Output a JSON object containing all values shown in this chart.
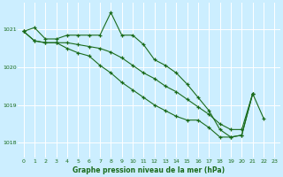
{
  "title": "Graphe pression niveau de la mer (hPa)",
  "bg_color": "#cceeff",
  "grid_color": "#ffffff",
  "line_color": "#1a6b1a",
  "marker": "+",
  "xlim": [
    -0.5,
    23.5
  ],
  "ylim": [
    1017.6,
    1021.7
  ],
  "yticks": [
    1018,
    1019,
    1020,
    1021
  ],
  "xticks": [
    0,
    1,
    2,
    3,
    4,
    5,
    6,
    7,
    8,
    9,
    10,
    11,
    12,
    13,
    14,
    15,
    16,
    17,
    18,
    19,
    20,
    21,
    22,
    23
  ],
  "line1_x": [
    0,
    1,
    2,
    3,
    4,
    5,
    6,
    7,
    8,
    9,
    10,
    11,
    12,
    13,
    14,
    15,
    16,
    17,
    18,
    19,
    20,
    21,
    22
  ],
  "line1_y": [
    1020.95,
    1021.05,
    1020.75,
    1020.75,
    1020.85,
    1020.85,
    1020.85,
    1020.85,
    1021.45,
    1020.85,
    1020.85,
    1020.6,
    1020.2,
    1020.05,
    1019.85,
    1019.55,
    1019.2,
    1018.85,
    1018.35,
    1018.15,
    1018.2,
    1019.3,
    1018.65
  ],
  "line2_x": [
    0,
    1,
    2,
    3,
    4,
    5,
    6,
    7,
    8,
    9,
    10,
    11,
    12,
    13,
    14,
    15,
    16,
    17,
    18,
    19,
    20,
    21
  ],
  "line2_y": [
    1020.95,
    1020.7,
    1020.65,
    1020.65,
    1020.65,
    1020.6,
    1020.55,
    1020.5,
    1020.4,
    1020.25,
    1020.05,
    1019.85,
    1019.7,
    1019.5,
    1019.35,
    1019.15,
    1018.95,
    1018.75,
    1018.5,
    1018.35,
    1018.35,
    1019.3
  ],
  "line3_x": [
    0,
    1,
    2,
    3,
    4,
    5,
    6,
    7,
    8,
    9,
    10,
    11,
    12,
    13,
    14,
    15,
    16,
    17,
    18,
    19,
    20,
    21
  ],
  "line3_y": [
    1020.95,
    1020.7,
    1020.65,
    1020.65,
    1020.5,
    1020.38,
    1020.3,
    1020.05,
    1019.85,
    1019.6,
    1019.4,
    1019.2,
    1019.0,
    1018.85,
    1018.7,
    1018.6,
    1018.6,
    1018.4,
    1018.15,
    1018.15,
    1018.2,
    1019.3
  ]
}
